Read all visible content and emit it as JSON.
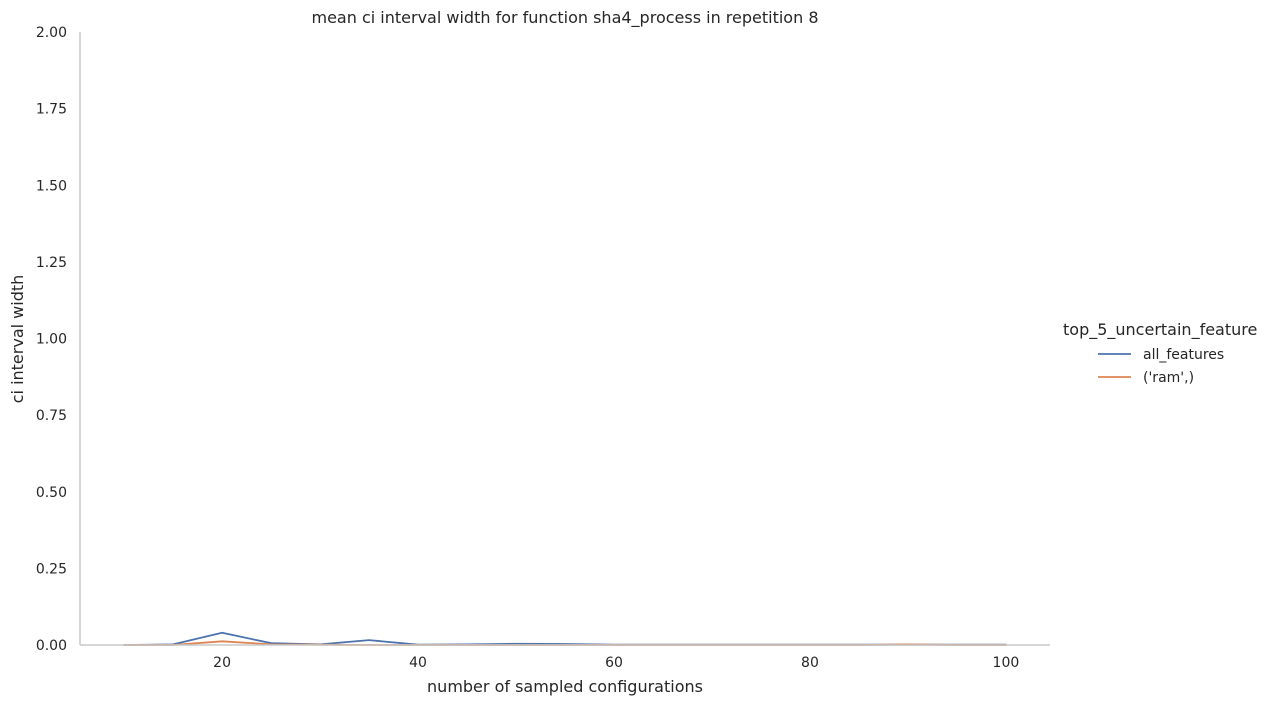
{
  "chart_data": {
    "type": "line",
    "title": "mean ci interval width for function sha4_process in repetition 8",
    "xlabel": "number of sampled configurations",
    "ylabel": "ci interval width",
    "xlim": [
      5.5,
      104.5
    ],
    "ylim": [
      0,
      2.0
    ],
    "xticks": [
      20,
      40,
      60,
      80,
      100
    ],
    "yticks": [
      0.0,
      0.25,
      0.5,
      0.75,
      1.0,
      1.25,
      1.5,
      1.75,
      2.0
    ],
    "ytick_labels": [
      "0.00",
      "0.25",
      "0.50",
      "0.75",
      "1.00",
      "1.25",
      "1.50",
      "1.75",
      "2.00"
    ],
    "xtick_labels": [
      "20",
      "40",
      "60",
      "80",
      "100"
    ],
    "grid": false,
    "legend": {
      "title": "top_5_uncertain_feature",
      "placement": "right"
    },
    "series": [
      {
        "name": "all_features",
        "color": "#4c72b0",
        "x": [
          10,
          15,
          20,
          25,
          30,
          35,
          40,
          45,
          50,
          55,
          60,
          65,
          70,
          75,
          80,
          85,
          90,
          95,
          100
        ],
        "y": [
          0.0,
          0.002,
          0.04,
          0.006,
          0.002,
          0.016,
          0.001,
          0.002,
          0.004,
          0.003,
          0.001,
          0.001,
          0.001,
          0.001,
          0.001,
          0.001,
          0.001,
          0.001,
          0.001
        ]
      },
      {
        "name": "('ram',)",
        "color": "#dd8452",
        "x": [
          10,
          15,
          20,
          25,
          30,
          35,
          40,
          45,
          50,
          55,
          60,
          65,
          70,
          75,
          80,
          85,
          90,
          95,
          100
        ],
        "y": [
          0.0,
          0.0,
          0.012,
          0.002,
          0.001,
          0.0,
          0.0,
          0.0,
          0.0,
          0.0,
          0.0,
          0.0,
          0.0,
          0.0,
          0.0,
          0.0,
          0.002,
          0.0,
          0.0
        ]
      }
    ]
  }
}
